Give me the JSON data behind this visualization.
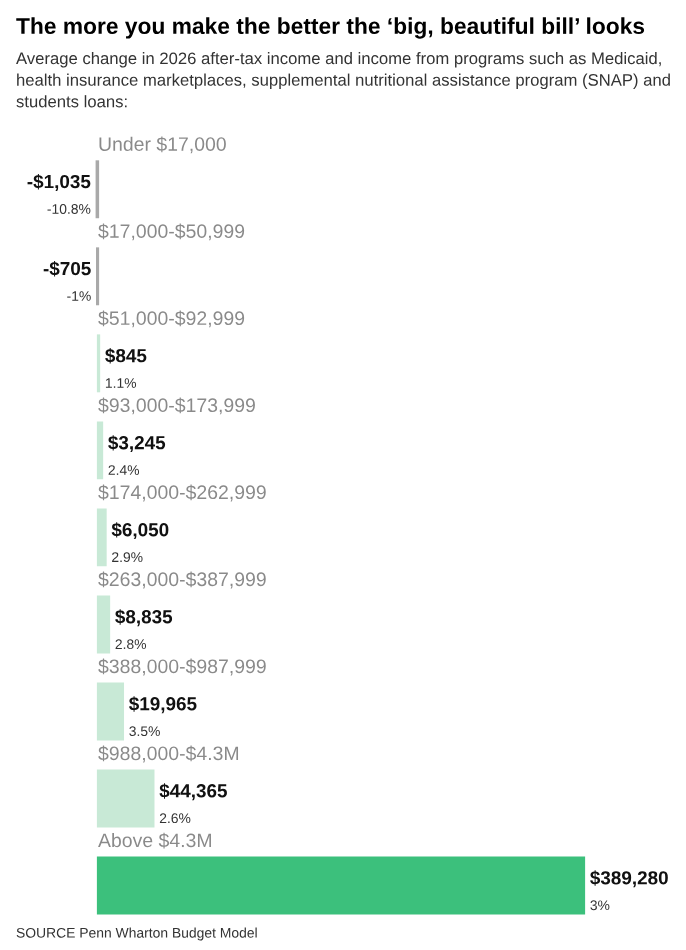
{
  "chart_data": {
    "type": "bar",
    "orientation": "horizontal",
    "title": "The more you make the better the ‘big, beautiful bill’ looks",
    "subtitle": "Average change in 2026 after-tax income and income from programs such as Medicaid, health insurance marketplaces, supplemental nutritional assistance program (SNAP) and students loans:",
    "categories": [
      "Under $17,000",
      "$17,000-$50,999",
      "$51,000-$92,999",
      "$93,000-$173,999",
      "$174,000-$262,999",
      "$263,000-$387,999",
      "$388,000-$987,999",
      "$988,000-$4.3M",
      "Above $4.3M"
    ],
    "values": [
      -1035,
      -705,
      845,
      3245,
      6050,
      8835,
      19965,
      44365,
      389280
    ],
    "colors": [
      "#a9a9a9",
      "#a9a9a9",
      "#c8e9d6",
      "#c8e9d6",
      "#c8e9d6",
      "#c8e9d6",
      "#c8e9d6",
      "#c8e9d6",
      "#3cc07c"
    ],
    "value_labels": [
      "-$1,035\n-10.8%",
      "-$705\n-1%",
      "$845\n1.1%",
      "$3,245\n2.4%",
      "$6,050\n2.9%",
      "$8,835\n2.8%",
      "$19,965\n3.5%",
      "$44,365\n2.6%",
      "$389,280\n3%"
    ],
    "annotations": [
      "SOURCE Penn Wharton Budget Model"
    ]
  }
}
